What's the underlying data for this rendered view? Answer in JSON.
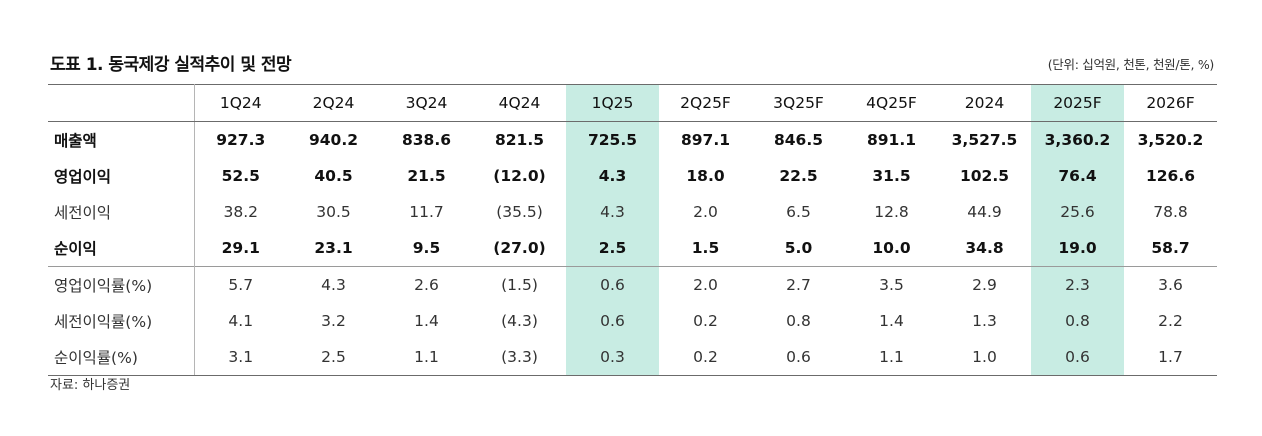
{
  "title": "도표 1. 동국제강 실적추이 및 전망",
  "unit": "(단위: 십억원, 천톤, 천원/톤, %)",
  "columns": [
    "1Q24",
    "2Q24",
    "3Q24",
    "4Q24",
    "1Q25",
    "2Q25F",
    "3Q25F",
    "4Q25F",
    "2024",
    "2025F",
    "2026F"
  ],
  "highlight_color": "#c8ece3",
  "rows": [
    {
      "label": "매출액",
      "values": [
        "927.3",
        "940.2",
        "838.6",
        "821.5",
        "725.5",
        "897.1",
        "846.5",
        "891.1",
        "3,527.5",
        "3,360.2",
        "3,520.2"
      ]
    },
    {
      "label": "영업이익",
      "values": [
        "52.5",
        "40.5",
        "21.5",
        "(12.0)",
        "4.3",
        "18.0",
        "22.5",
        "31.5",
        "102.5",
        "76.4",
        "126.6"
      ]
    },
    {
      "label": "세전이익",
      "values": [
        "38.2",
        "30.5",
        "11.7",
        "(35.5)",
        "4.3",
        "2.0",
        "6.5",
        "12.8",
        "44.9",
        "25.6",
        "78.8"
      ]
    },
    {
      "label": "순이익",
      "values": [
        "29.1",
        "23.1",
        "9.5",
        "(27.0)",
        "2.5",
        "1.5",
        "5.0",
        "10.0",
        "34.8",
        "19.0",
        "58.7"
      ]
    },
    {
      "label": "영업이익률(%)",
      "values": [
        "5.7",
        "4.3",
        "2.6",
        "(1.5)",
        "0.6",
        "2.0",
        "2.7",
        "3.5",
        "2.9",
        "2.3",
        "3.6"
      ]
    },
    {
      "label": "세전이익률(%)",
      "values": [
        "4.1",
        "3.2",
        "1.4",
        "(4.3)",
        "0.6",
        "0.2",
        "0.8",
        "1.4",
        "1.3",
        "0.8",
        "2.2"
      ]
    },
    {
      "label": "순이익률(%)",
      "values": [
        "3.1",
        "2.5",
        "1.1",
        "(3.3)",
        "0.3",
        "0.2",
        "0.6",
        "1.1",
        "1.0",
        "0.6",
        "1.7"
      ]
    }
  ],
  "source": "자료: 하나증권"
}
